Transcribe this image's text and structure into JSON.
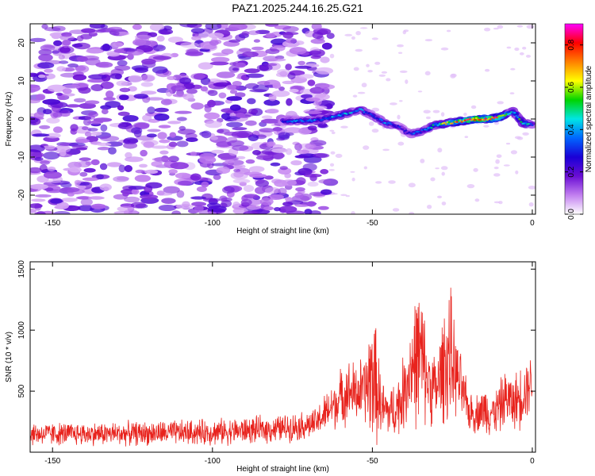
{
  "title": "PAZ1.2025.244.16.25.G21",
  "chart_data": [
    {
      "type": "heatmap",
      "name": "spectrogram",
      "xlabel": "Height of straight line (km)",
      "ylabel": "Frequency (Hz)",
      "xlim": [
        -157,
        1
      ],
      "ylim": [
        -25,
        25
      ],
      "xticks": [
        -150,
        -100,
        -50,
        0
      ],
      "yticks": [
        -20,
        -10,
        0,
        10,
        20
      ],
      "colorbar": {
        "label": "Normalized spectral amplitude",
        "range": [
          0.0,
          0.9
        ],
        "ticks": [
          "0.0",
          "0.2",
          "0.4",
          "0.6",
          "0.8"
        ],
        "colormap": [
          "#ffffff",
          "#c27ff0",
          "#6a0dd4",
          "#1a00d6",
          "#0066ff",
          "#00e5e5",
          "#00d400",
          "#ffff00",
          "#ff8000",
          "#ff0000",
          "#ff00ff"
        ]
      },
      "signal_track": {
        "x": [
          -78,
          -72,
          -66,
          -60,
          -54,
          -50,
          -46,
          -42,
          -38,
          -34,
          -30,
          -26,
          -22,
          -18,
          -14,
          -10,
          -6,
          -3,
          0
        ],
        "freq": [
          -0.5,
          -0.5,
          0,
          1,
          2.5,
          1,
          -1,
          -2,
          -4,
          -3,
          -1.5,
          -1,
          -0.5,
          0,
          0,
          0.5,
          2,
          -1,
          -1.5
        ],
        "amplitude": [
          0.35,
          0.4,
          0.38,
          0.45,
          0.42,
          0.35,
          0.4,
          0.3,
          0.35,
          0.4,
          0.5,
          0.7,
          0.75,
          0.9,
          0.85,
          0.8,
          0.45,
          0.55,
          0.4
        ]
      },
      "noise_extent_km": [
        -157,
        -63
      ]
    },
    {
      "type": "line",
      "name": "snr",
      "xlabel": "Height of straight line (km)",
      "ylabel": "SNR (10 * v/v)",
      "xlim": [
        -157,
        1
      ],
      "ylim": [
        0,
        1560
      ],
      "xticks": [
        -150,
        -100,
        -50,
        0
      ],
      "yticks": [
        500,
        1000,
        1500
      ],
      "color": "#e8231d",
      "envelope": {
        "x": [
          -157,
          -140,
          -120,
          -100,
          -80,
          -68,
          -63,
          -58,
          -55,
          -52,
          -50,
          -47,
          -44,
          -41,
          -38,
          -35,
          -33,
          -30,
          -28,
          -26,
          -24,
          -22,
          -20,
          -18,
          -16,
          -14,
          -12,
          -10,
          -8,
          -6,
          -4,
          -2,
          0
        ],
        "base": [
          150,
          150,
          155,
          165,
          190,
          230,
          360,
          500,
          480,
          520,
          650,
          350,
          330,
          420,
          700,
          800,
          600,
          500,
          700,
          800,
          650,
          500,
          350,
          310,
          340,
          350,
          320,
          380,
          450,
          400,
          450,
          520,
          600
        ],
        "amp": [
          110,
          110,
          115,
          125,
          130,
          140,
          220,
          300,
          300,
          350,
          700,
          280,
          250,
          320,
          500,
          750,
          400,
          350,
          500,
          720,
          400,
          300,
          200,
          180,
          200,
          250,
          200,
          250,
          280,
          250,
          300,
          300,
          250
        ]
      }
    }
  ]
}
